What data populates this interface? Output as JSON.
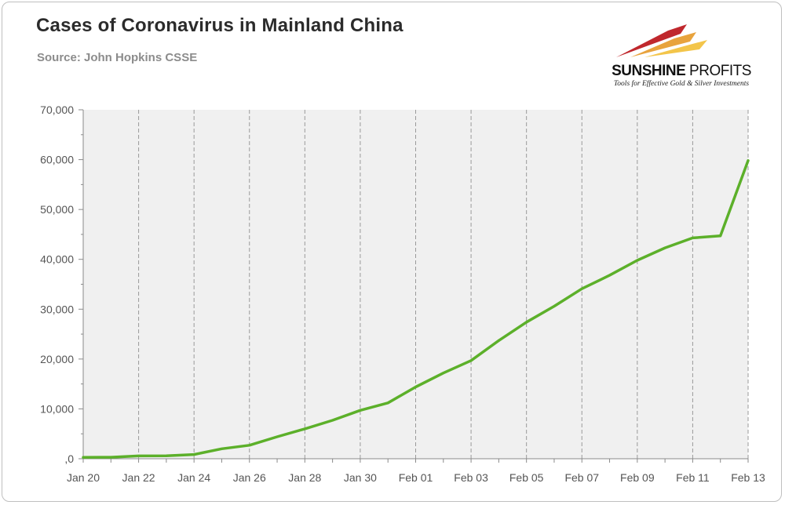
{
  "header": {
    "title": "Cases of Coronavirus in Mainland China",
    "subtitle": "Source: John Hopkins CSSE"
  },
  "logo": {
    "brand_bold": "SUNSHINE",
    "brand_light": " PROFITS",
    "tagline": "Tools for Effective Gold & Silver Investments",
    "colors": [
      "#c0282d",
      "#e8a33d",
      "#f3c54a"
    ]
  },
  "colors": {
    "line": "#5cb02a",
    "plot_background": "#f0f0f0",
    "grid": "#9a9a9a"
  },
  "chart_data": {
    "type": "line",
    "title": "Cases of Coronavirus in Mainland China",
    "subtitle": "Source: John Hopkins CSSE",
    "xlabel": "",
    "ylabel": "",
    "x": [
      "Jan 20",
      "Jan 21",
      "Jan 22",
      "Jan 23",
      "Jan 24",
      "Jan 25",
      "Jan 26",
      "Jan 27",
      "Jan 28",
      "Jan 29",
      "Jan 30",
      "Jan 31",
      "Feb 01",
      "Feb 02",
      "Feb 03",
      "Feb 04",
      "Feb 05",
      "Feb 06",
      "Feb 07",
      "Feb 08",
      "Feb 09",
      "Feb 10",
      "Feb 11",
      "Feb 12",
      "Feb 13"
    ],
    "x_tick_labels": [
      "Jan 20",
      "Jan 22",
      "Jan 24",
      "Jan 26",
      "Jan 28",
      "Jan 30",
      "Feb 01",
      "Feb 03",
      "Feb 05",
      "Feb 07",
      "Feb 09",
      "Feb 11",
      "Feb 13"
    ],
    "series": [
      {
        "values": [
          280,
          300,
          570,
          580,
          850,
          2000,
          2700,
          4400,
          6000,
          7700,
          9700,
          11200,
          14400,
          17200,
          19700,
          23700,
          27400,
          30600,
          34100,
          36800,
          39800,
          42300,
          44300,
          44700,
          59800
        ]
      }
    ],
    "ylim": [
      0,
      70000
    ],
    "y_ticks": [
      0,
      10000,
      20000,
      30000,
      40000,
      50000,
      60000,
      70000
    ],
    "y_tick_labels": [
      ",0",
      "10,000",
      "20,000",
      "30,000",
      "40,000",
      "50,000",
      "60,000",
      "70,000"
    ],
    "grid": "vertical dashed lines at labeled x ticks",
    "legend": "none"
  }
}
